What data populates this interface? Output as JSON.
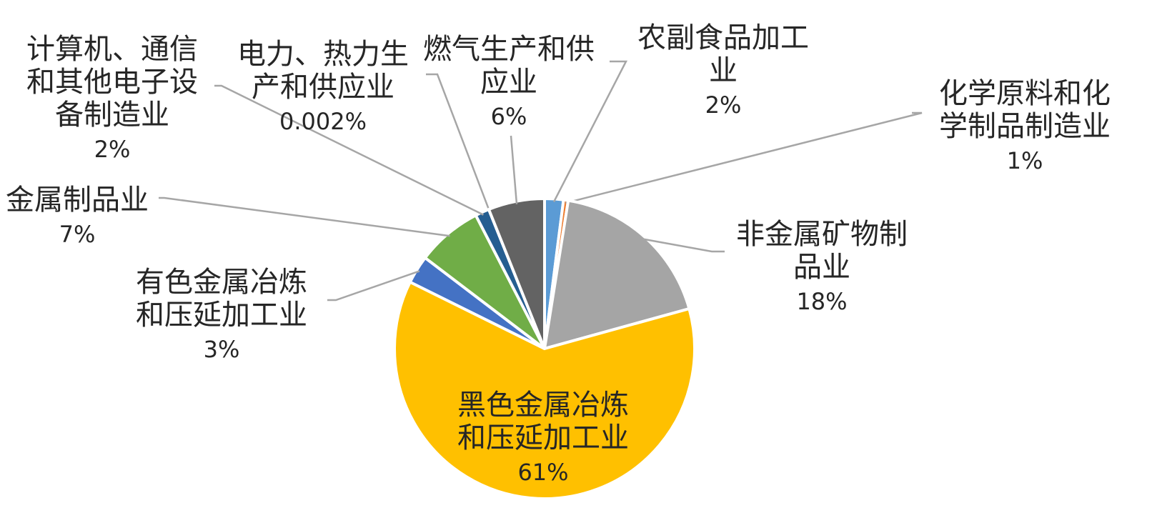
{
  "chart_data": {
    "type": "pie",
    "title": "",
    "start_angle_deg": 0,
    "direction": "clockwise",
    "slices": [
      {
        "label_lines": [
          "农副食品加工",
          "业"
        ],
        "value": 2,
        "value_label": "2%",
        "color": "#5B9BD5"
      },
      {
        "label_lines": [
          "化学原料和化",
          "学制品制造业"
        ],
        "value": 0.5,
        "value_label": "1%",
        "color": "#ED7D31"
      },
      {
        "label_lines": [
          "非金属矿物制",
          "品业"
        ],
        "value": 18,
        "value_label": "18%",
        "color": "#A5A5A5"
      },
      {
        "label_lines": [
          "黑色金属冶炼",
          "和压延加工业"
        ],
        "value": 61,
        "value_label": "61%",
        "color": "#FFC000"
      },
      {
        "label_lines": [
          "有色金属冶炼",
          "和压延加工业"
        ],
        "value": 3,
        "value_label": "3%",
        "color": "#4472C4"
      },
      {
        "label_lines": [
          "金属制品业"
        ],
        "value": 7,
        "value_label": "7%",
        "color": "#70AD47"
      },
      {
        "label_lines": [
          "计算机、通信",
          "和其他电子设",
          "备制造业"
        ],
        "value": 1.5,
        "value_label": "2%",
        "color": "#255E91"
      },
      {
        "label_lines": [
          "电力、热力生",
          "产和供应业"
        ],
        "value": 0.002,
        "value_label": "0.002%",
        "color": "#9E480E"
      },
      {
        "label_lines": [
          "燃气生产和供",
          "应业"
        ],
        "value": 6,
        "value_label": "6%",
        "color": "#636363"
      }
    ]
  }
}
